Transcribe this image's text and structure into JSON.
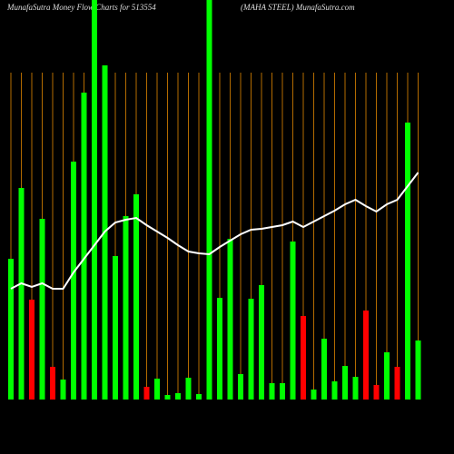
{
  "chart_data": {
    "type": "bar",
    "title": "MunafaSutra  Money Flow  Charts for 513554",
    "subtitle": "(MAHA STEEL) MunafaSutra.com",
    "categories": [
      null,
      null,
      null,
      null,
      null,
      null,
      null,
      null,
      null,
      null,
      null,
      null,
      null,
      null,
      null,
      null,
      null,
      null,
      null,
      null,
      null,
      null,
      null,
      null,
      null,
      null,
      null,
      null,
      null,
      null,
      null,
      null,
      null,
      null,
      null,
      null,
      null,
      null,
      null,
      null
    ],
    "values": [
      155,
      233,
      110,
      199,
      36,
      22,
      262,
      338,
      440,
      368,
      158,
      202,
      226,
      14,
      23,
      5,
      7,
      24,
      6,
      440,
      112,
      177,
      28,
      111,
      126,
      18,
      18,
      174,
      92,
      11,
      67,
      20,
      37,
      25,
      98,
      16,
      52,
      36,
      305,
      65
    ],
    "colors": [
      "#00ff00",
      "#00ff00",
      "#ff0000",
      "#00ff00",
      "#ff0000",
      "#00ff00",
      "#00ff00",
      "#00ff00",
      "#00ff00",
      "#00ff00",
      "#00ff00",
      "#00ff00",
      "#00ff00",
      "#ff0000",
      "#00ff00",
      "#00ff00",
      "#00ff00",
      "#00ff00",
      "#00ff00",
      "#00ff00",
      "#00ff00",
      "#00ff00",
      "#00ff00",
      "#00ff00",
      "#00ff00",
      "#00ff00",
      "#00ff00",
      "#00ff00",
      "#ff0000",
      "#00ff00",
      "#00ff00",
      "#00ff00",
      "#00ff00",
      "#00ff00",
      "#ff0000",
      "#ff0000",
      "#00ff00",
      "#ff0000",
      "#00ff00",
      "#00ff00"
    ],
    "line_values": [
      122,
      128,
      124,
      128,
      122,
      122,
      140,
      155,
      170,
      185,
      195,
      198,
      200,
      192,
      185,
      178,
      170,
      163,
      161,
      160,
      168,
      175,
      182,
      187,
      188,
      190,
      192,
      196,
      190,
      196,
      202,
      208,
      215,
      220,
      213,
      207,
      215,
      220,
      235,
      250
    ],
    "line_color": "#ffffff",
    "ylim": [
      0,
      440
    ],
    "gridline_color": "#b36b00"
  }
}
